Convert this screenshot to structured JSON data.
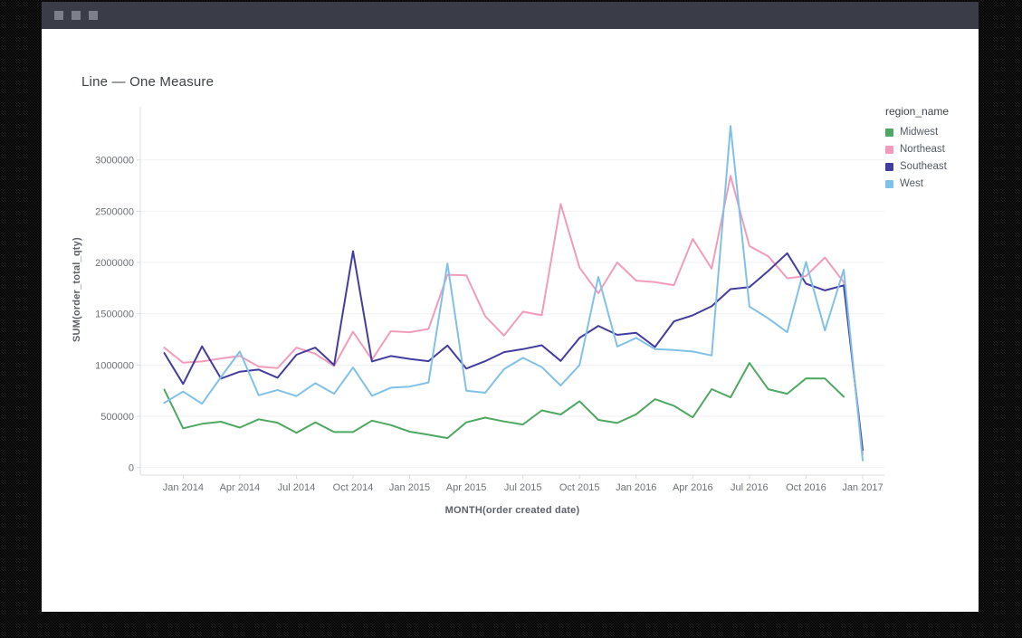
{
  "chrome": {
    "window_buttons": [
      "square",
      "square",
      "square"
    ]
  },
  "card": {
    "title": "Line — One Measure"
  },
  "legend": {
    "title": "region_name"
  },
  "chart_data": {
    "type": "line",
    "title": "Line — One Measure",
    "xlabel": "MONTH(order created date)",
    "ylabel": "SUM(order_total_qty)",
    "legend_title": "region_name",
    "legend_position": "right",
    "grid": "horizontal",
    "ylim": [
      0,
      3500000
    ],
    "y_ticks": [
      0,
      500000,
      1000000,
      1500000,
      2000000,
      2500000,
      3000000
    ],
    "x_tick_labels": [
      "Jan 2014",
      "Apr 2014",
      "Jul 2014",
      "Oct 2014",
      "Jan 2015",
      "Apr 2015",
      "Jul 2015",
      "Oct 2015",
      "Jan 2016",
      "Apr 2016",
      "Jul 2016",
      "Oct 2016",
      "Jan 2017"
    ],
    "x": [
      "Dec 2013",
      "Jan 2014",
      "Feb 2014",
      "Mar 2014",
      "Apr 2014",
      "May 2014",
      "Jun 2014",
      "Jul 2014",
      "Aug 2014",
      "Sep 2014",
      "Oct 2014",
      "Nov 2014",
      "Dec 2014",
      "Jan 2015",
      "Feb 2015",
      "Mar 2015",
      "Apr 2015",
      "May 2015",
      "Jun 2015",
      "Jul 2015",
      "Aug 2015",
      "Sep 2015",
      "Oct 2015",
      "Nov 2015",
      "Dec 2015",
      "Jan 2016",
      "Feb 2016",
      "Mar 2016",
      "Apr 2016",
      "May 2016",
      "Jun 2016",
      "Jul 2016",
      "Aug 2016",
      "Sep 2016",
      "Oct 2016",
      "Nov 2016",
      "Dec 2016",
      "Jan 2017"
    ],
    "colors": {
      "grid": "#f0f1f4",
      "axis": "#d9dce1",
      "tick_text": "#6d7278"
    },
    "series": [
      {
        "name": "Midwest",
        "color": "#4fa862",
        "values": [
          760000,
          383000,
          427000,
          447000,
          390000,
          471000,
          438000,
          339000,
          441000,
          347000,
          347000,
          458000,
          415000,
          350000,
          320000,
          288000,
          441000,
          487000,
          450000,
          420000,
          558000,
          518000,
          647000,
          465000,
          435000,
          520000,
          667000,
          603000,
          490000,
          765000,
          685000,
          1020000,
          764000,
          720000,
          870000,
          868000,
          691000,
          null
        ]
      },
      {
        "name": "Northeast",
        "color": "#f29cbb",
        "values": [
          1170000,
          1023000,
          1035000,
          1064000,
          1088000,
          985000,
          970000,
          1170000,
          1110000,
          990000,
          1325000,
          1053000,
          1330000,
          1320000,
          1352000,
          1880000,
          1875000,
          1476000,
          1287000,
          1520000,
          1485000,
          2570000,
          1950000,
          1700000,
          2000000,
          1823000,
          1808000,
          1779000,
          2230000,
          1940000,
          2845000,
          2160000,
          2060000,
          1846000,
          1867000,
          2049000,
          1808000,
          130000
        ]
      },
      {
        "name": "Southeast",
        "color": "#433da0",
        "values": [
          1117000,
          815000,
          1182000,
          868000,
          935000,
          956000,
          876000,
          1100000,
          1170000,
          1000000,
          2110000,
          1035000,
          1088000,
          1060000,
          1038000,
          1190000,
          965000,
          1038000,
          1126000,
          1155000,
          1193000,
          1040000,
          1264000,
          1382000,
          1294000,
          1314000,
          1176000,
          1426000,
          1485000,
          1573000,
          1740000,
          1760000,
          1917000,
          2090000,
          1793000,
          1728000,
          1776000,
          170000
        ]
      },
      {
        "name": "West",
        "color": "#80c1e9",
        "values": [
          632000,
          741000,
          623000,
          882000,
          1132000,
          705000,
          757000,
          697000,
          823000,
          720000,
          976000,
          700000,
          779000,
          790000,
          830000,
          1990000,
          750000,
          730000,
          960000,
          1070000,
          980000,
          800000,
          1000000,
          1860000,
          1180000,
          1264000,
          1155000,
          1146000,
          1132000,
          1093000,
          3330000,
          1570000,
          1455000,
          1320000,
          2005000,
          1338000,
          1930000,
          70000
        ]
      }
    ]
  }
}
